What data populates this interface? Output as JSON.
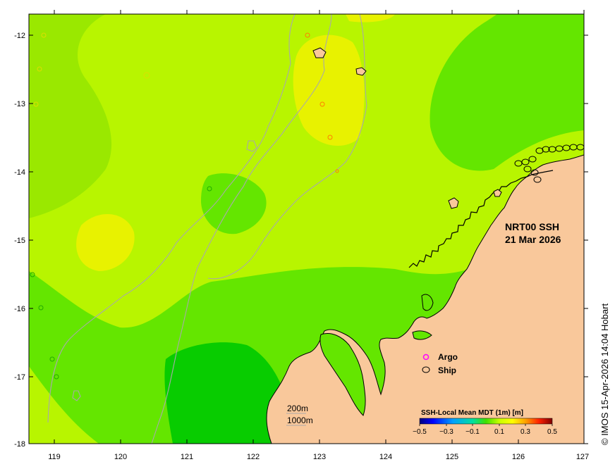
{
  "map": {
    "title_line1": "NRT00 SSH",
    "title_line2": "21 Mar 2026",
    "credit": "© IMOS 15-Apr-2026 14:04 Hobart",
    "land_color": "#f9c89b",
    "coast_color": "#000000",
    "bathymetry_color": "#a9a9a9"
  },
  "axes": {
    "x_ticks": [
      "119",
      "120",
      "121",
      "122",
      "123",
      "124",
      "125",
      "126",
      "127"
    ],
    "y_ticks": [
      "-12",
      "-13",
      "-14",
      "-15",
      "-16",
      "-17",
      "-18"
    ]
  },
  "legend": {
    "argo_label": "Argo",
    "argo_color": "#ff00ff",
    "ship_label": "Ship",
    "ship_color": "#000000",
    "depth_200": "200m",
    "depth_1000": "1000m"
  },
  "colorbar": {
    "title": "SSH-Local Mean MDT (1m) [m]",
    "ticks": [
      "−0.5",
      "−0.3",
      "−0.1",
      "0.1",
      "0.3",
      "0.5"
    ],
    "colors": [
      "#00007f",
      "#0000ff",
      "#007fff",
      "#00ffff",
      "#7fff7f",
      "#00e000",
      "#b8ff00",
      "#ffff00",
      "#ff7f00",
      "#ff0000",
      "#7f0000"
    ]
  },
  "ssh_field_colors": {
    "level_dark": "#08cc00",
    "level_mid": "#64e600",
    "level_light": "#b8f500",
    "level_high": "#e8f200"
  }
}
